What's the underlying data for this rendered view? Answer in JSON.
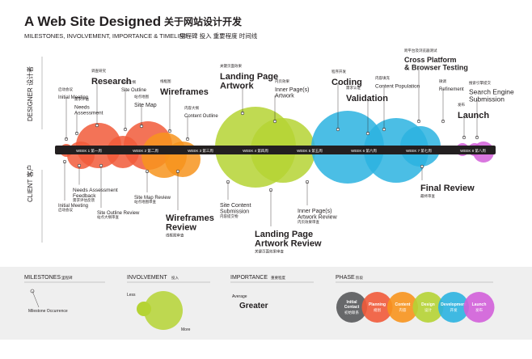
{
  "header": {
    "title": "A Web Site Designed",
    "title_cn": "关于网站设计开发",
    "subtitle": "MILESTONES, INVOLVEMENT, IMPORTANCE & TIMELINE",
    "subtitle_cn": "里程碑 投入 重要程度 时间线"
  },
  "side_labels": {
    "designer": "DESIGNER 设计者",
    "client": "CLIENT 客户"
  },
  "weeks": [
    "WEEK 1 第一周",
    "WEEK 2 第二周",
    "WEEK 3 第三周",
    "WEEK 4 第四周",
    "WEEK 5 第五周",
    "WEEK 6 第六周",
    "WEEK 7 第七周",
    "WEEK 8 第八周"
  ],
  "milestones": {
    "designer": [
      {
        "label": [
          "Initial Meeting"
        ],
        "label_cn": "启动会议"
      },
      {
        "label": [
          "Needs",
          "Assessment"
        ],
        "label_cn": "需求评估"
      },
      {
        "label": [
          "Research"
        ],
        "label_cn": "调查研究"
      },
      {
        "label": [
          "Site Outline"
        ],
        "label_cn": "站点大纲"
      },
      {
        "label": [
          "Site Map"
        ],
        "label_cn": "站点地图"
      },
      {
        "label": [
          "Wireframes"
        ],
        "label_cn": "线框图"
      },
      {
        "label": [
          "Content Outline"
        ],
        "label_cn": "内容大纲"
      },
      {
        "label": [
          "Landing Page",
          "Artwork"
        ],
        "label_cn": "关键页面效果"
      },
      {
        "label": [
          "Inner Page(s)",
          "Artwork"
        ],
        "label_cn": "内页效果"
      },
      {
        "label": [
          "Coding"
        ],
        "label_cn": "程序开发"
      },
      {
        "label": [
          "Validation"
        ],
        "label_cn": "需求认证"
      },
      {
        "label": [
          "Content Population"
        ],
        "label_cn": "内容填充"
      },
      {
        "label": [
          "Cross Platform",
          "& Browser Testing"
        ],
        "label_cn": "跨平台及浏览器测试"
      },
      {
        "label": [
          "Refinement"
        ],
        "label_cn": "微调"
      },
      {
        "label": [
          "Launch"
        ],
        "label_cn": "发布"
      },
      {
        "label": [
          "Search Engine",
          "Submission"
        ],
        "label_cn": "搜索引擎提交"
      }
    ],
    "client": [
      {
        "label": [
          "Initial Meeting"
        ],
        "label_cn": "启动会议"
      },
      {
        "label": [
          "Needs Assessment",
          "Feedback"
        ],
        "label_cn": "需求评估反馈"
      },
      {
        "label": [
          "Site Outline Review"
        ],
        "label_cn": "站点大纲审查"
      },
      {
        "label": [
          "Site Map Review"
        ],
        "label_cn": "站点地图审查"
      },
      {
        "label": [
          "Wireframes",
          "Review"
        ],
        "label_cn": "线框图审查"
      },
      {
        "label": [
          "Site Content",
          "Submission"
        ],
        "label_cn": "内容提交物"
      },
      {
        "label": [
          "Landing Page",
          "Artwork Review"
        ],
        "label_cn": "关键页面效果审查"
      },
      {
        "label": [
          "Inner Page(s)",
          "Artwork Review"
        ],
        "label_cn": "内页效果审查"
      },
      {
        "label": [
          "Final Review"
        ],
        "label_cn": "最终审查"
      }
    ]
  },
  "legend": {
    "milestones": {
      "title": "MILESTONES",
      "title_cn": "里程碑",
      "item": "Milestone Occurrence"
    },
    "involvement": {
      "title": "INVOLVEMENT",
      "title_cn": "投入",
      "less": "Less",
      "more": "More"
    },
    "importance": {
      "title": "IMPORTANCE",
      "title_cn": "重要程度",
      "average": "Average",
      "greater": "Greater"
    },
    "phase": {
      "title": "PHASE",
      "title_cn": "阶段",
      "items": [
        {
          "label": [
            "Initial",
            "Contact"
          ],
          "label_cn": "初始联系",
          "color": "#58595b"
        },
        {
          "label": [
            "Planning"
          ],
          "label_cn": "规划",
          "color": "#f15a3a"
        },
        {
          "label": [
            "Content"
          ],
          "label_cn": "内容",
          "color": "#f7941d"
        },
        {
          "label": [
            "Design"
          ],
          "label_cn": "设计",
          "color": "#b5d334"
        },
        {
          "label": [
            "Development"
          ],
          "label_cn": "开发",
          "color": "#2bb3e0"
        },
        {
          "label": [
            "Launch"
          ],
          "label_cn": "发布",
          "color": "#d25fd9"
        }
      ]
    }
  }
}
